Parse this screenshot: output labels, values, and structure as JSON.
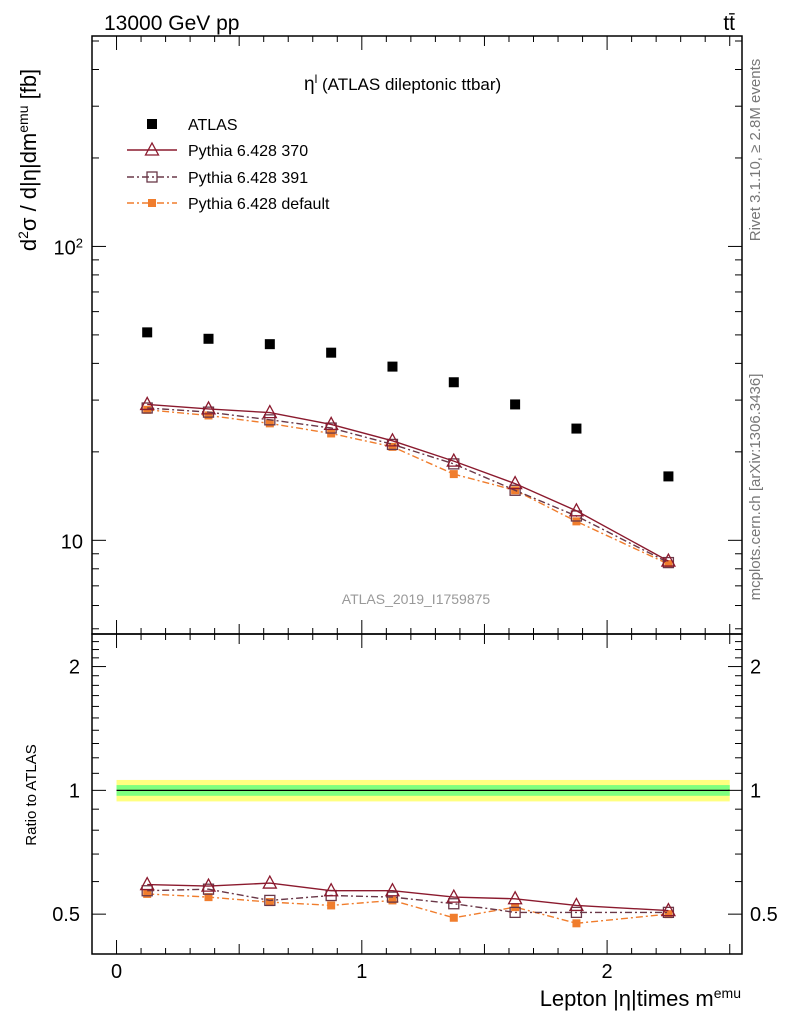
{
  "header": {
    "energy_label": "13000 GeV pp",
    "process_label": "tt̄"
  },
  "side_labels": {
    "rivet": "Rivet 3.1.10, ≥ 2.8M events",
    "mcplots": "mcplots.cern.ch [arXiv:1306.3436]"
  },
  "chart_data": [
    {
      "type": "scatter",
      "panel": "main",
      "title_prefix": "η",
      "title_sup": "l",
      "title_rest": " (ATLAS dileptonic ttbar)",
      "ylabel": "d²σ / d|η|dm^emu [fb]",
      "watermark": "ATLAS_2019_I1759875",
      "yscale": "log",
      "ylim": [
        4.8,
        520
      ],
      "xlim": [
        -0.1,
        2.55
      ],
      "ytick_labels": [
        {
          "value": 10,
          "label": "10"
        },
        {
          "value": 100,
          "label": "10²"
        }
      ],
      "legend_position": "top-left",
      "x": [
        0.125,
        0.375,
        0.625,
        0.875,
        1.125,
        1.375,
        1.625,
        1.875,
        2.25
      ],
      "series": [
        {
          "name": "ATLAS",
          "color": "#000000",
          "marker": "filled-square",
          "line": "none",
          "values": [
            51,
            48.5,
            46.5,
            43.5,
            39,
            34.5,
            29,
            24,
            16.5
          ]
        },
        {
          "name": "Pythia 6.428 370",
          "color": "#8b1a2e",
          "marker": "open-triangle",
          "line": "solid",
          "values": [
            29,
            28,
            27.2,
            24.8,
            21.8,
            18.6,
            15.6,
            12.6,
            8.5
          ]
        },
        {
          "name": "Pythia 6.428 391",
          "color": "#6a3848",
          "marker": "open-square",
          "line": "dash-dot",
          "values": [
            28.2,
            27.3,
            25.7,
            24.1,
            21.2,
            18.2,
            14.8,
            12.1,
            8.4
          ]
        },
        {
          "name": "Pythia 6.428 default",
          "color": "#f07d2d",
          "marker": "filled-square-small",
          "line": "dash-dot",
          "values": [
            27.8,
            26.6,
            25.0,
            23.1,
            20.8,
            16.8,
            14.8,
            11.6,
            8.3
          ]
        }
      ]
    },
    {
      "type": "line",
      "panel": "ratio",
      "ylabel": "Ratio to ATLAS",
      "xlabel": "Lepton |η|times m^emu",
      "yscale": "log",
      "ylim": [
        0.4,
        2.4
      ],
      "xlim": [
        -0.1,
        2.55
      ],
      "ytick_labels": [
        {
          "value": 0.5,
          "label": "0.5"
        },
        {
          "value": 1,
          "label": "1"
        },
        {
          "value": 2,
          "label": "2"
        }
      ],
      "xtick_labels": [
        {
          "value": 0,
          "label": "0"
        },
        {
          "value": 1,
          "label": "1"
        },
        {
          "value": 2,
          "label": "2"
        }
      ],
      "band": {
        "inner": [
          0.97,
          1.03
        ],
        "outer": [
          0.94,
          1.06
        ],
        "inner_color": "#7fff7f",
        "outer_color": "#ffff80"
      },
      "x": [
        0.125,
        0.375,
        0.625,
        0.875,
        1.125,
        1.375,
        1.625,
        1.875,
        2.25
      ],
      "series": [
        {
          "name": "Pythia 6.428 370",
          "color": "#8b1a2e",
          "marker": "open-triangle",
          "line": "solid",
          "values": [
            0.59,
            0.585,
            0.595,
            0.57,
            0.57,
            0.55,
            0.545,
            0.525,
            0.51
          ]
        },
        {
          "name": "Pythia 6.428 391",
          "color": "#6a3848",
          "marker": "open-square",
          "line": "dash-dot",
          "values": [
            0.57,
            0.575,
            0.54,
            0.555,
            0.55,
            0.53,
            0.505,
            0.505,
            0.505
          ]
        },
        {
          "name": "Pythia 6.428 default",
          "color": "#f07d2d",
          "marker": "filled-square-small",
          "line": "dash-dot",
          "values": [
            0.56,
            0.55,
            0.535,
            0.525,
            0.54,
            0.49,
            0.52,
            0.475,
            0.5
          ]
        }
      ]
    }
  ]
}
